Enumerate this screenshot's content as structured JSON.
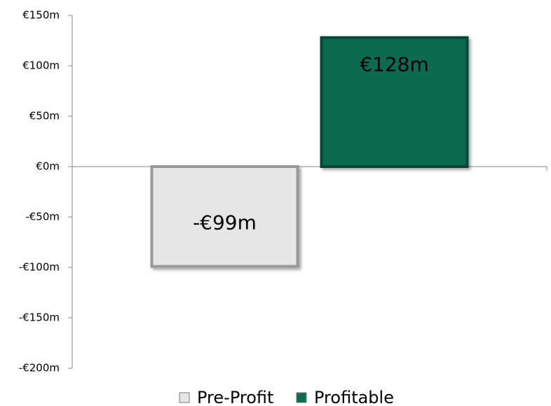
{
  "chart_data": {
    "type": "bar",
    "categories": [
      null
    ],
    "series": [
      {
        "name": "Pre-Profit",
        "color": "#e6e6e6",
        "values": [
          -99
        ],
        "value_labels": [
          "-€99m"
        ]
      },
      {
        "name": "Profitable",
        "color": "#0b6b50",
        "values": [
          128
        ],
        "value_labels": [
          "€128m"
        ]
      }
    ],
    "ylim": [
      -200,
      150
    ],
    "yticks": [
      {
        "value": -200,
        "label": "-€200m"
      },
      {
        "value": -150,
        "label": "-€150m"
      },
      {
        "value": -100,
        "label": "-€100m"
      },
      {
        "value": -50,
        "label": "-€50m"
      },
      {
        "value": 0,
        "label": "€0m"
      },
      {
        "value": 50,
        "label": "€50m"
      },
      {
        "value": 100,
        "label": "€100m"
      },
      {
        "value": 150,
        "label": "€150m"
      }
    ],
    "grid": false,
    "legend": "bottom"
  }
}
